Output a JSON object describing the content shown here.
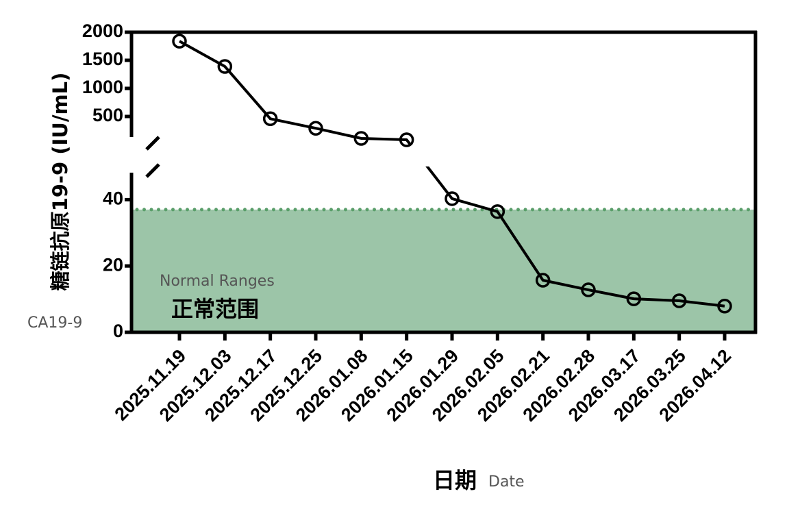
{
  "chart_data": {
    "type": "line",
    "y_title": "糖链抗原19-9 (IU/mL)",
    "y_title_en": "CA19-9",
    "x_title": "日期",
    "x_title_en": "Date",
    "categories": [
      "2025.11.19",
      "2025.12.03",
      "2025.12.17",
      "2025.12.25",
      "2026.01.08",
      "2026.01.15",
      "2026.01.29",
      "2026.02.05",
      "2026.02.21",
      "2026.02.28",
      "2026.03.17",
      "2026.03.25",
      "2026.04.12"
    ],
    "series": [
      {
        "color": "#000000",
        "values": [
          1840,
          1390,
          460,
          290,
          110,
          85,
          40.3,
          36.4,
          15.7,
          12.8,
          10.1,
          9.5,
          7.9
        ]
      }
    ],
    "y_segments": [
      {
        "ylim": [
          0,
          50
        ],
        "yticks": [
          0,
          20,
          40
        ]
      },
      {
        "ylim": [
          0,
          2000
        ],
        "yticks": [
          500,
          1000,
          1500,
          2000
        ]
      }
    ],
    "reference_band": {
      "label": "正常范围",
      "label_en": "Normal Ranges",
      "range": [
        0,
        37
      ],
      "color": "#9cc5a8",
      "line_color": "#5a9e6a"
    }
  }
}
